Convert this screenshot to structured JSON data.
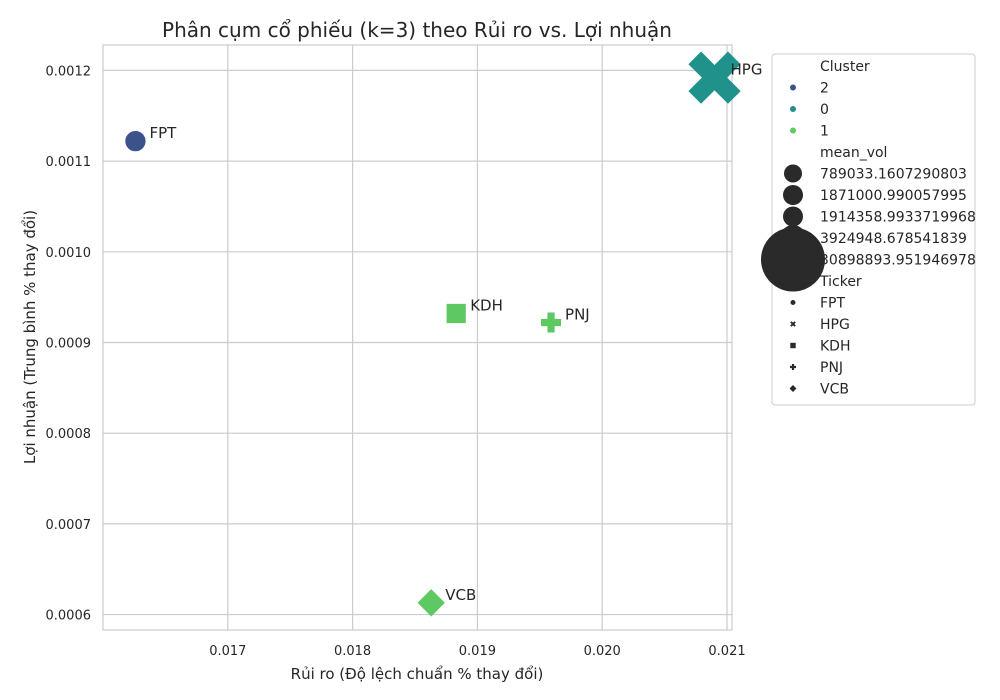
{
  "chart_data": {
    "type": "scatter",
    "title": "Phân cụm cổ phiếu (k=3) theo Rủi ro vs. Lợi nhuận",
    "xlabel": "Rủi ro (Độ lệch chuẩn % thay đổi)",
    "ylabel": "Lợi nhuận (Trung bình % thay đổi)",
    "xlim": [
      0.016,
      0.02104
    ],
    "ylim": [
      0.000583,
      0.001228
    ],
    "xticks": [
      "0.017",
      "0.018",
      "0.019",
      "0.020",
      "0.021"
    ],
    "xtick_values": [
      0.017,
      0.018,
      0.019,
      0.02,
      0.021
    ],
    "yticks": [
      "0.0006",
      "0.0007",
      "0.0008",
      "0.0009",
      "0.0010",
      "0.0011",
      "0.0012"
    ],
    "ytick_values": [
      0.0006,
      0.0007,
      0.0008,
      0.0009,
      0.001,
      0.0011,
      0.0012
    ],
    "grid": true,
    "legend_position": "outside-right",
    "points": [
      {
        "ticker": "FPT",
        "x": 0.01626,
        "y": 0.001122,
        "cluster": "2",
        "marker": "circle",
        "mean_vol": 1871000.990057995,
        "label": "FPT"
      },
      {
        "ticker": "HPG",
        "x": 0.0209,
        "y": 0.001192,
        "cluster": "0",
        "marker": "x",
        "mean_vol": 30898893.951946978,
        "label": "HPG"
      },
      {
        "ticker": "KDH",
        "x": 0.01883,
        "y": 0.000932,
        "cluster": "1",
        "marker": "square",
        "mean_vol": 1914358.9933719968,
        "label": "KDH"
      },
      {
        "ticker": "PNJ",
        "x": 0.01959,
        "y": 0.000922,
        "cluster": "1",
        "marker": "plus",
        "mean_vol": 789033.1607290803,
        "label": "PNJ"
      },
      {
        "ticker": "VCB",
        "x": 0.01863,
        "y": 0.000613,
        "cluster": "1",
        "marker": "diamond",
        "mean_vol": 3924948.678541839,
        "label": "VCB"
      }
    ],
    "cluster_colors": {
      "2": "#3b528b",
      "0": "#21918c",
      "1": "#5ec962"
    },
    "legend": {
      "cluster_title": "Cluster",
      "clusters": [
        {
          "label": "2",
          "color": "#3b528b"
        },
        {
          "label": "0",
          "color": "#21918c"
        },
        {
          "label": "1",
          "color": "#5ec962"
        }
      ],
      "size_title": "mean_vol",
      "sizes": [
        {
          "label": "789033.1607290803",
          "value": 789033.1607290803
        },
        {
          "label": "1871000.990057995",
          "value": 1871000.990057995
        },
        {
          "label": "1914358.9933719968",
          "value": 1914358.9933719968
        },
        {
          "label": "3924948.678541839",
          "value": 3924948.678541839
        },
        {
          "label": "30898893.951946978",
          "value": 30898893.951946978
        }
      ],
      "marker_title": "Ticker",
      "markers": [
        {
          "label": "FPT",
          "marker": "circle"
        },
        {
          "label": "HPG",
          "marker": "x"
        },
        {
          "label": "KDH",
          "marker": "square"
        },
        {
          "label": "PNJ",
          "marker": "plus"
        },
        {
          "label": "VCB",
          "marker": "diamond"
        }
      ]
    }
  }
}
